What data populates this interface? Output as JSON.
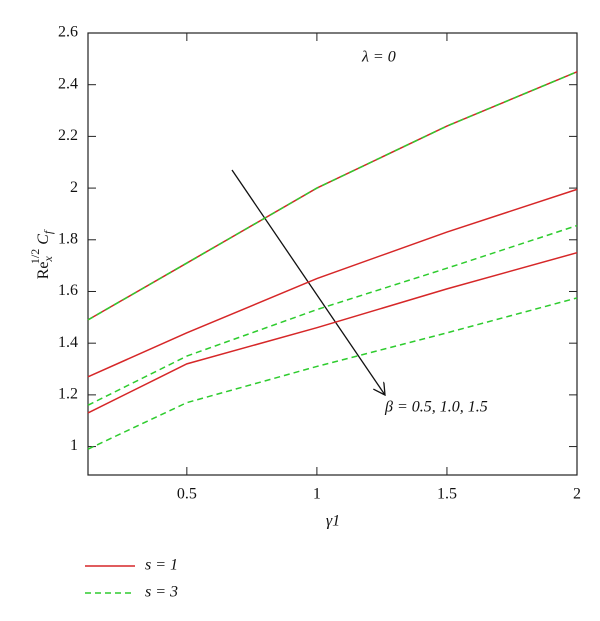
{
  "chart_data": {
    "type": "line",
    "x_label": "γ1",
    "y_label": [
      "Re",
      "x",
      "1/2",
      " C",
      "f"
    ],
    "annotations": [
      "λ = 0",
      "β = 0.5, 1.0, 1.5"
    ],
    "x": [
      0.12,
      0.5,
      1,
      1.5,
      2
    ],
    "series": [
      {
        "name": "s = 1",
        "color": "#d62728",
        "dashed": false,
        "values": [
          [
            1.49,
            1.71,
            2.0,
            2.24,
            2.45
          ],
          [
            1.27,
            1.44,
            1.65,
            1.83,
            1.995
          ],
          [
            1.13,
            1.32,
            1.46,
            1.61,
            1.75
          ]
        ]
      },
      {
        "name": "s = 3",
        "color": "#2ecc2e",
        "dashed": true,
        "values": [
          [
            1.49,
            1.71,
            2.0,
            2.24,
            2.45
          ],
          [
            1.16,
            1.35,
            1.53,
            1.69,
            1.855
          ],
          [
            0.99,
            1.17,
            1.31,
            1.44,
            1.575
          ]
        ]
      }
    ],
    "xlim": [
      0.12,
      2
    ],
    "xticks": [
      0.5,
      1,
      1.5,
      2
    ],
    "ylim": [
      0.89,
      2.6
    ],
    "yticks": [
      1,
      1.2,
      1.4,
      1.6,
      1.8,
      2,
      2.2,
      2.4,
      2.6
    ]
  }
}
